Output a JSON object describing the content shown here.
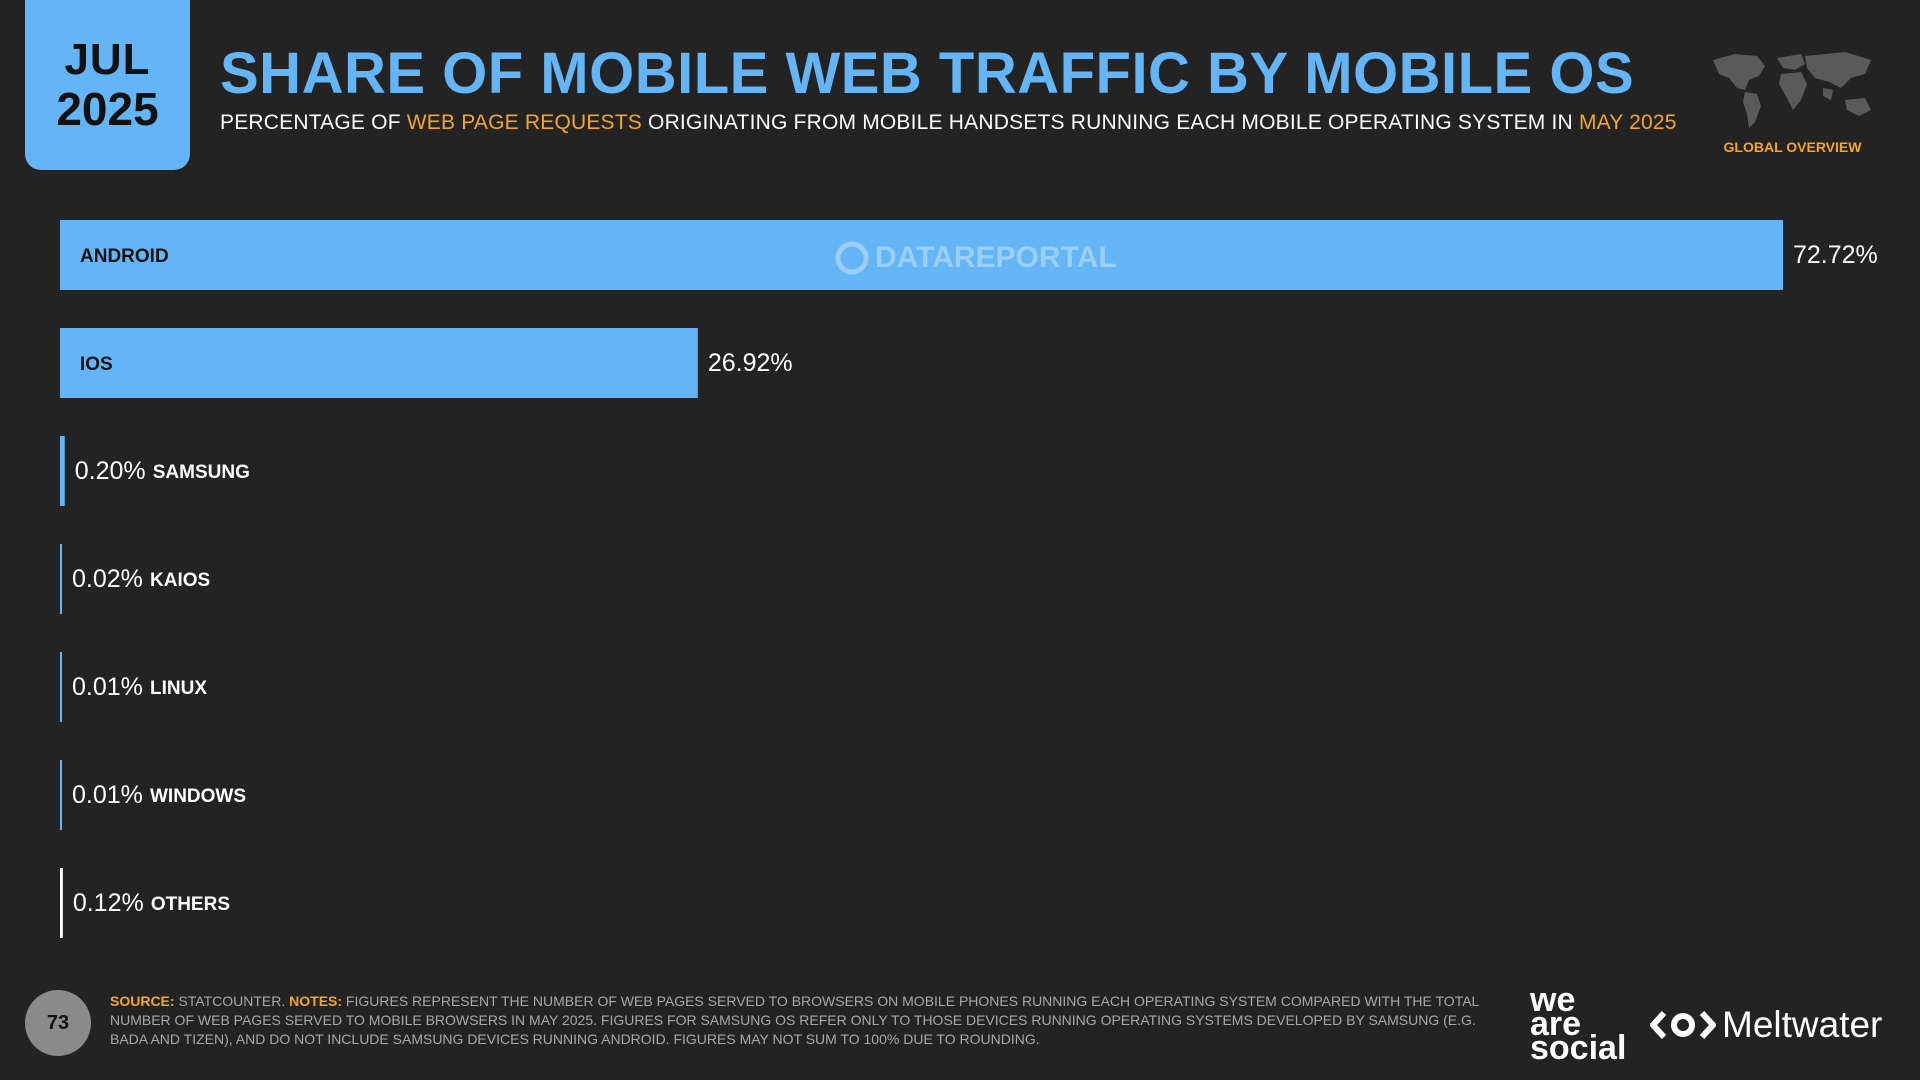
{
  "header": {
    "month": "JUL",
    "year": "2025",
    "title": "SHARE OF MOBILE WEB TRAFFIC BY MOBILE OS",
    "subtitle_parts": [
      "PERCENTAGE OF ",
      "WEB PAGE REQUESTS",
      " ORIGINATING FROM MOBILE HANDSETS RUNNING EACH MOBILE OPERATING SYSTEM IN ",
      "MAY 2025"
    ],
    "region_label": "GLOBAL OVERVIEW",
    "map_icon": "world-map-icon"
  },
  "chart_data": {
    "type": "bar",
    "orientation": "horizontal",
    "categories": [
      "ANDROID",
      "IOS",
      "SAMSUNG",
      "KAIOS",
      "LINUX",
      "WINDOWS",
      "OTHERS"
    ],
    "values": [
      72.72,
      26.92,
      0.2,
      0.02,
      0.01,
      0.01,
      0.12
    ],
    "value_labels": [
      "72.72%",
      "26.92%",
      "0.20%",
      "0.02%",
      "0.01%",
      "0.01%",
      "0.12%"
    ],
    "xlim": [
      0,
      72.72
    ],
    "watermark": "DATAREPORTAL",
    "colors": [
      "#64b5f6",
      "#64b5f6",
      "#64b5f6",
      "#64b5f6",
      "#64b5f6",
      "#64b5f6",
      "#ffffff"
    ]
  },
  "footer": {
    "source_label": "SOURCE:",
    "source_text": " STATCOUNTER. ",
    "notes_label": "NOTES:",
    "notes_text": " FIGURES REPRESENT THE NUMBER OF WEB PAGES SERVED TO BROWSERS ON MOBILE PHONES RUNNING EACH OPERATING SYSTEM COMPARED WITH THE TOTAL NUMBER OF WEB PAGES SERVED TO MOBILE BROWSERS IN MAY 2025. FIGURES FOR SAMSUNG OS REFER ONLY TO THOSE DEVICES RUNNING OPERATING SYSTEMS DEVELOPED BY SAMSUNG (E.G. BADA AND TIZEN), AND DO NOT INCLUDE SAMSUNG DEVICES RUNNING ANDROID. FIGURES MAY NOT SUM TO 100% DUE TO ROUNDING.",
    "page_number": "73",
    "logo_we_are_social": [
      "we",
      "are",
      "social"
    ],
    "logo_meltwater": "Meltwater"
  }
}
